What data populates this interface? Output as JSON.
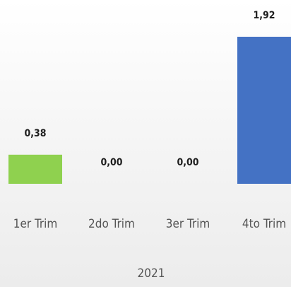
{
  "chart_data": {
    "type": "bar",
    "categories": [
      "1er Trim",
      "2do Trim",
      "3er Trim",
      "4to Trim"
    ],
    "series": [
      {
        "values": [
          0.38,
          0.0,
          0.0,
          1.92
        ],
        "colors": [
          "#8fd14f",
          "#4472c4",
          "#4472c4",
          "#4472c4"
        ]
      }
    ],
    "data_labels": [
      "0,38",
      "0,00",
      "0,00",
      "1,92"
    ],
    "group_label": "2021",
    "title": "",
    "xlabel": "",
    "ylabel": "",
    "ylim": [
      0,
      1.92
    ],
    "grid": false,
    "legend": "none"
  }
}
